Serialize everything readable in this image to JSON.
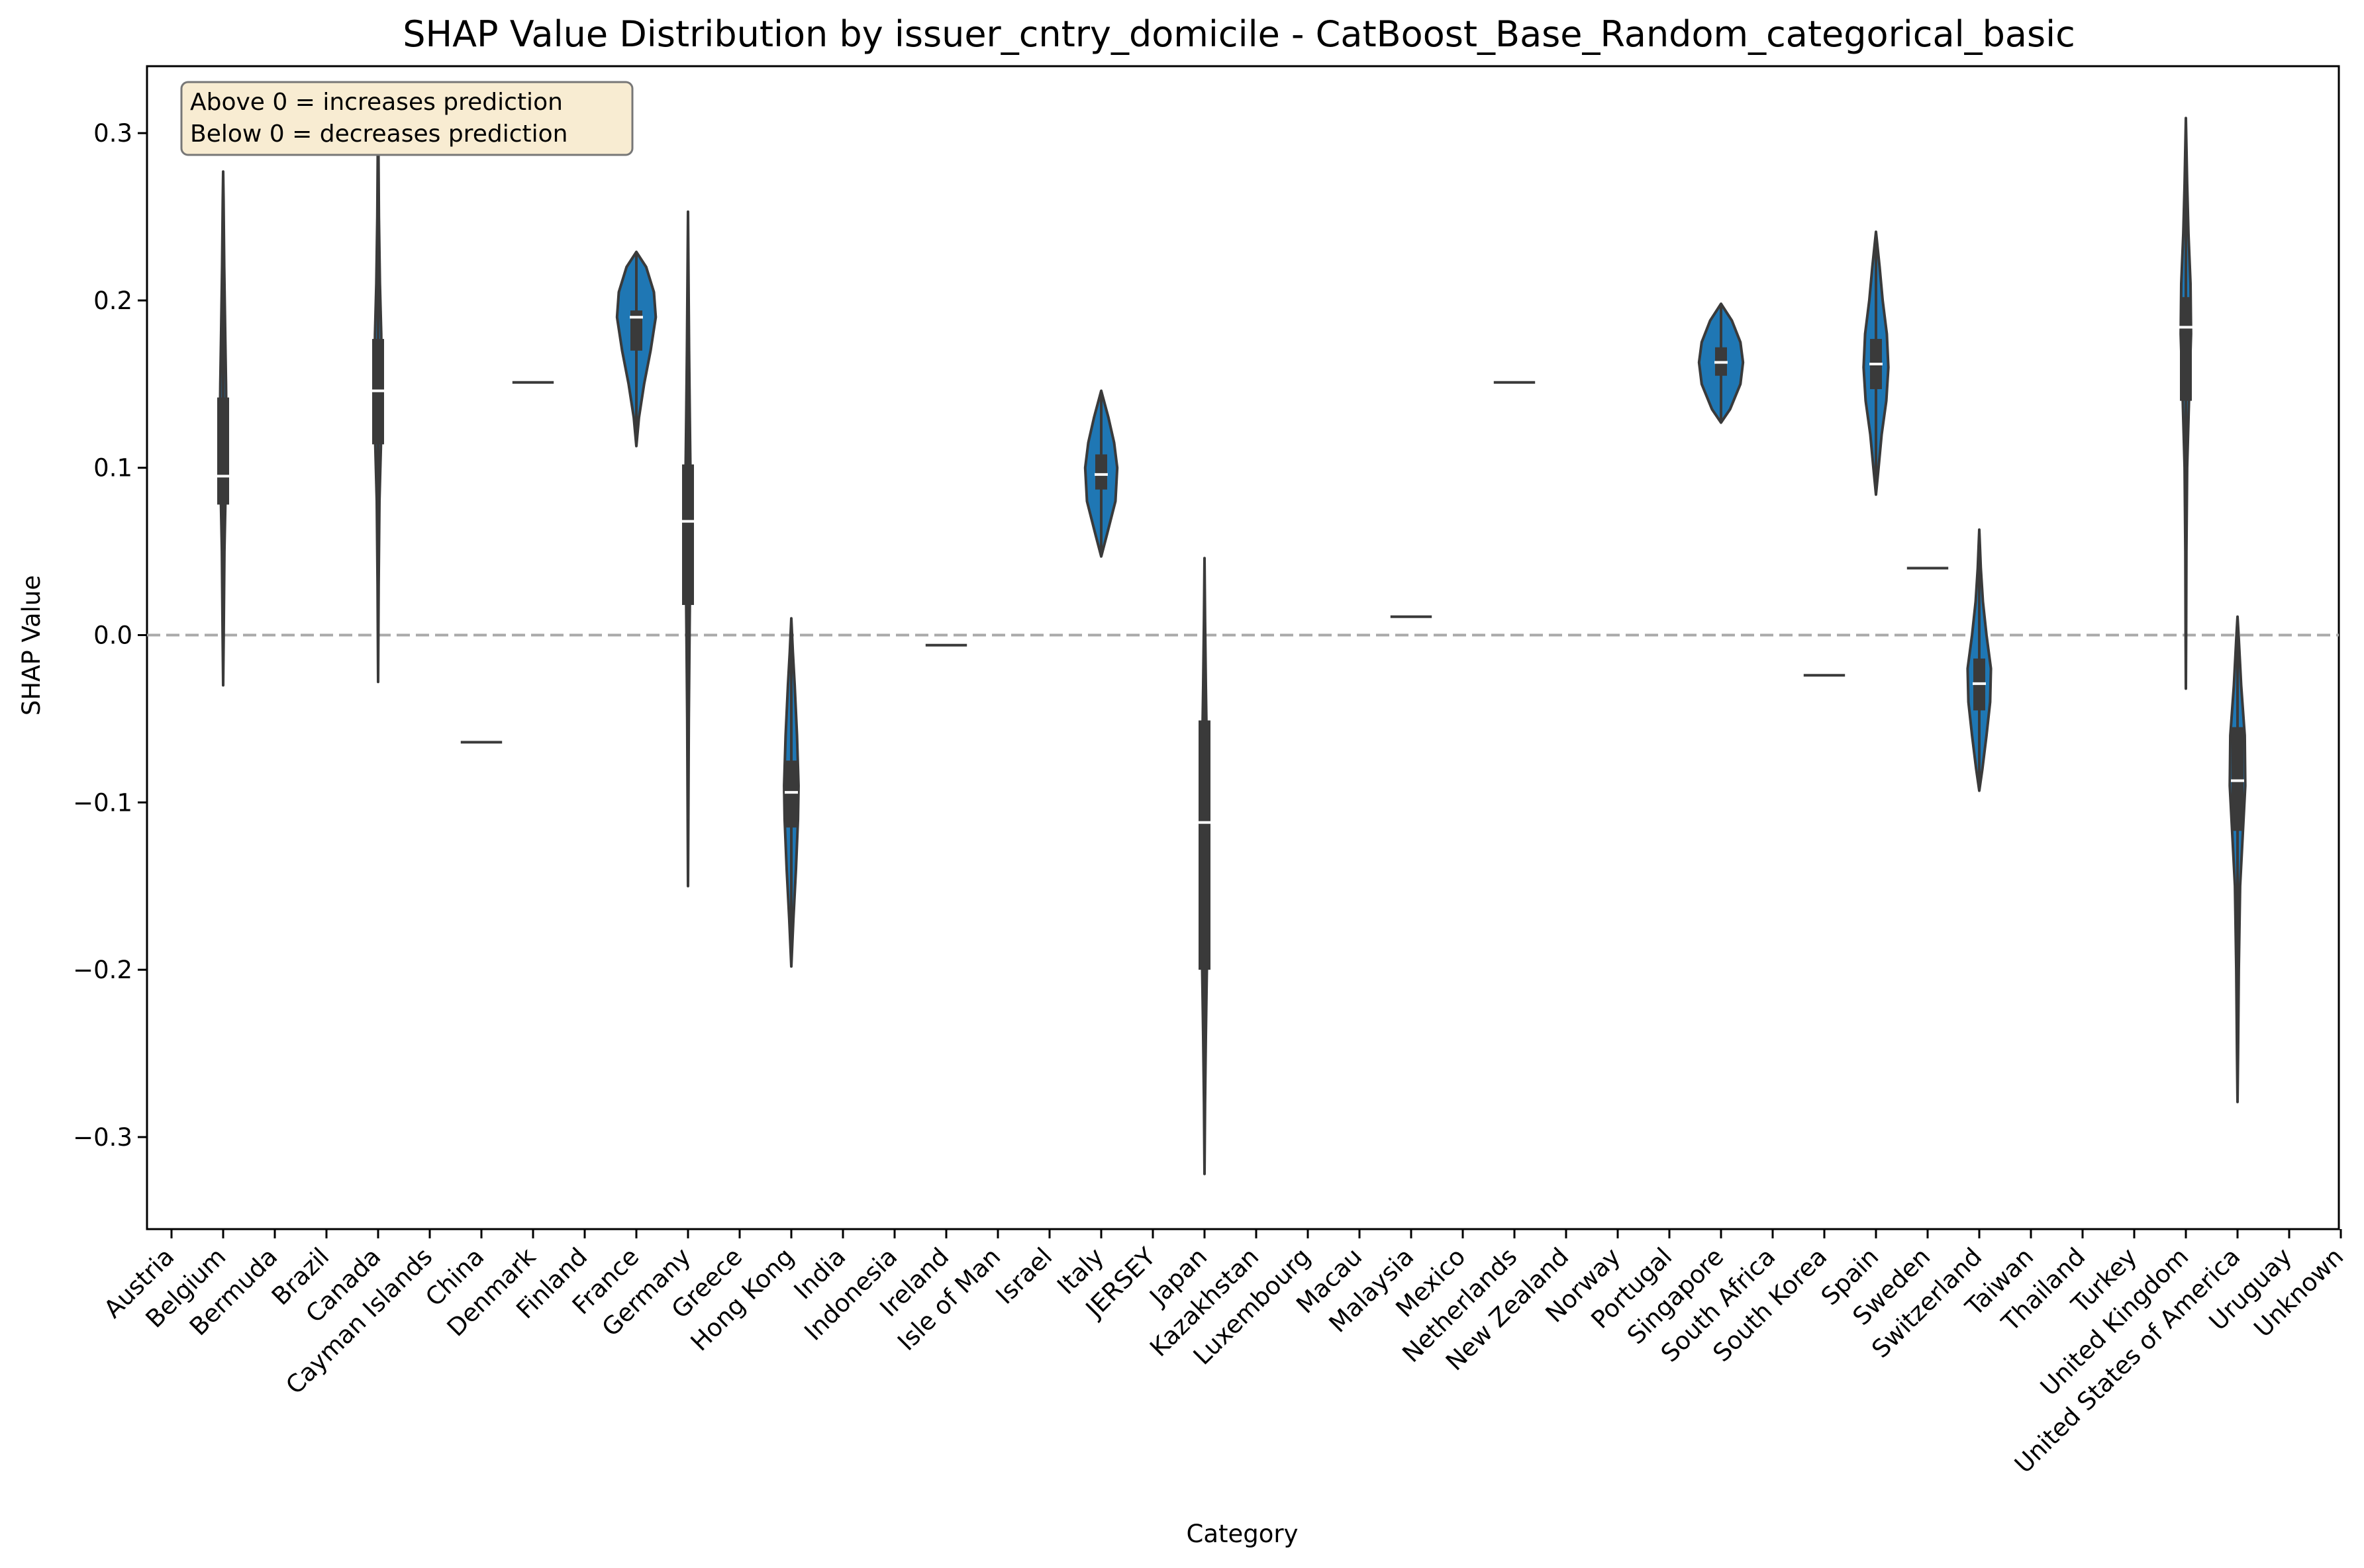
{
  "chart_data": {
    "type": "violin",
    "title": "SHAP Value Distribution by issuer_cntry_domicile - CatBoost_Base_Random_categorical_basic",
    "xlabel": "Category",
    "ylabel": "SHAP Value",
    "ylim": [
      -0.355,
      0.34
    ],
    "yticks": [
      -0.3,
      -0.2,
      -0.1,
      0.0,
      0.1,
      0.2,
      0.3
    ],
    "ytick_labels": [
      "−0.3",
      "−0.2",
      "−0.1",
      "0.0",
      "0.1",
      "0.2",
      "0.3"
    ],
    "reference_line": {
      "y": 0.0,
      "style": "dashed",
      "color": "#aaaaaa"
    },
    "annotation": {
      "lines": [
        "Above 0 = increases prediction",
        "Below 0 = decreases prediction"
      ],
      "placement": "top-left"
    },
    "colors": {
      "violin_fill": "#1f77b4",
      "violin_edge": "#3a3a3a",
      "box": "#3a3a3a",
      "median": "#ffffff"
    },
    "categories": [
      "Austria",
      "Belgium",
      "Bermuda",
      "Brazil",
      "Canada",
      "Cayman Islands",
      "China",
      "Denmark",
      "Finland",
      "France",
      "Germany",
      "Greece",
      "Hong Kong",
      "India",
      "Indonesia",
      "Ireland",
      "Isle of Man",
      "Israel",
      "Italy",
      "JERSEY",
      "Japan",
      "Kazakhstan",
      "Luxembourg",
      "Macau",
      "Malaysia",
      "Mexico",
      "Netherlands",
      "New Zealand",
      "Norway",
      "Portugal",
      "Singapore",
      "South Africa",
      "South Korea",
      "Spain",
      "Sweden",
      "Switzerland",
      "Taiwan",
      "Thailand",
      "Turkey",
      "United Kingdom",
      "United States of America",
      "Uruguay",
      "Unknown"
    ],
    "violins": [
      {
        "category": "Belgium",
        "kind": "violin",
        "min": -0.03,
        "max": 0.277,
        "q1": 0.078,
        "median": 0.095,
        "q3": 0.142,
        "profile": [
          [
            -0.03,
            0.0
          ],
          [
            0.0,
            0.02
          ],
          [
            0.05,
            0.05
          ],
          [
            0.09,
            0.1
          ],
          [
            0.12,
            0.13
          ],
          [
            0.15,
            0.11
          ],
          [
            0.18,
            0.08
          ],
          [
            0.22,
            0.04
          ],
          [
            0.26,
            0.015
          ],
          [
            0.277,
            0.0
          ]
        ]
      },
      {
        "category": "Canada",
        "kind": "violin",
        "min": -0.028,
        "max": 0.305,
        "q1": 0.114,
        "median": 0.146,
        "q3": 0.177,
        "profile": [
          [
            -0.028,
            0.0
          ],
          [
            0.03,
            0.02
          ],
          [
            0.08,
            0.05
          ],
          [
            0.12,
            0.12
          ],
          [
            0.15,
            0.14
          ],
          [
            0.18,
            0.12
          ],
          [
            0.21,
            0.07
          ],
          [
            0.25,
            0.03
          ],
          [
            0.29,
            0.012
          ],
          [
            0.305,
            0.0
          ]
        ]
      },
      {
        "category": "China",
        "kind": "single",
        "value": -0.064
      },
      {
        "category": "Denmark",
        "kind": "single",
        "value": 0.151
      },
      {
        "category": "France",
        "kind": "violin",
        "min": 0.113,
        "max": 0.229,
        "q1": 0.17,
        "median": 0.19,
        "q3": 0.194,
        "profile": [
          [
            0.113,
            0.0
          ],
          [
            0.13,
            0.1
          ],
          [
            0.15,
            0.3
          ],
          [
            0.17,
            0.55
          ],
          [
            0.19,
            0.75
          ],
          [
            0.205,
            0.68
          ],
          [
            0.22,
            0.38
          ],
          [
            0.229,
            0.0
          ]
        ]
      },
      {
        "category": "Germany",
        "kind": "violin",
        "min": -0.15,
        "max": 0.253,
        "q1": 0.018,
        "median": 0.068,
        "q3": 0.102,
        "profile": [
          [
            -0.15,
            0.0
          ],
          [
            -0.1,
            0.015
          ],
          [
            -0.05,
            0.03
          ],
          [
            0.0,
            0.06
          ],
          [
            0.05,
            0.09
          ],
          [
            0.09,
            0.1
          ],
          [
            0.13,
            0.07
          ],
          [
            0.17,
            0.04
          ],
          [
            0.21,
            0.02
          ],
          [
            0.253,
            0.0
          ]
        ]
      },
      {
        "category": "Hong Kong",
        "kind": "violin",
        "min": -0.198,
        "max": 0.01,
        "q1": -0.115,
        "median": -0.094,
        "q3": -0.075,
        "profile": [
          [
            -0.198,
            0.0
          ],
          [
            -0.17,
            0.08
          ],
          [
            -0.14,
            0.18
          ],
          [
            -0.11,
            0.26
          ],
          [
            -0.09,
            0.28
          ],
          [
            -0.06,
            0.22
          ],
          [
            -0.03,
            0.13
          ],
          [
            -0.01,
            0.06
          ],
          [
            0.01,
            0.0
          ]
        ]
      },
      {
        "category": "Ireland",
        "kind": "single",
        "value": -0.006
      },
      {
        "category": "Italy",
        "kind": "violin",
        "min": 0.047,
        "max": 0.146,
        "q1": 0.087,
        "median": 0.096,
        "q3": 0.108,
        "profile": [
          [
            0.047,
            0.0
          ],
          [
            0.06,
            0.22
          ],
          [
            0.08,
            0.55
          ],
          [
            0.1,
            0.62
          ],
          [
            0.115,
            0.5
          ],
          [
            0.13,
            0.28
          ],
          [
            0.146,
            0.0
          ]
        ]
      },
      {
        "category": "Japan",
        "kind": "violin",
        "min": -0.322,
        "max": 0.046,
        "q1": -0.2,
        "median": -0.112,
        "q3": -0.051,
        "profile": [
          [
            -0.322,
            0.0
          ],
          [
            -0.28,
            0.02
          ],
          [
            -0.24,
            0.05
          ],
          [
            -0.2,
            0.09
          ],
          [
            -0.15,
            0.11
          ],
          [
            -0.11,
            0.11
          ],
          [
            -0.07,
            0.09
          ],
          [
            -0.03,
            0.05
          ],
          [
            0.01,
            0.02
          ],
          [
            0.046,
            0.0
          ]
        ]
      },
      {
        "category": "Malaysia",
        "kind": "single",
        "value": 0.011
      },
      {
        "category": "Netherlands",
        "kind": "single",
        "value": 0.151
      },
      {
        "category": "Singapore",
        "kind": "violin",
        "min": 0.127,
        "max": 0.198,
        "q1": 0.155,
        "median": 0.163,
        "q3": 0.172,
        "profile": [
          [
            0.127,
            0.0
          ],
          [
            0.135,
            0.35
          ],
          [
            0.15,
            0.75
          ],
          [
            0.163,
            0.85
          ],
          [
            0.175,
            0.75
          ],
          [
            0.188,
            0.42
          ],
          [
            0.198,
            0.0
          ]
        ]
      },
      {
        "category": "South Korea",
        "kind": "single",
        "value": -0.024
      },
      {
        "category": "Spain",
        "kind": "violin",
        "min": 0.084,
        "max": 0.241,
        "q1": 0.147,
        "median": 0.162,
        "q3": 0.177,
        "profile": [
          [
            0.084,
            0.0
          ],
          [
            0.1,
            0.1
          ],
          [
            0.12,
            0.22
          ],
          [
            0.14,
            0.4
          ],
          [
            0.16,
            0.48
          ],
          [
            0.18,
            0.42
          ],
          [
            0.2,
            0.26
          ],
          [
            0.22,
            0.14
          ],
          [
            0.241,
            0.0
          ]
        ]
      },
      {
        "category": "Sweden",
        "kind": "single",
        "value": 0.04
      },
      {
        "category": "Switzerland",
        "kind": "violin",
        "min": -0.093,
        "max": 0.063,
        "q1": -0.045,
        "median": -0.029,
        "q3": -0.014,
        "profile": [
          [
            -0.093,
            0.0
          ],
          [
            -0.08,
            0.12
          ],
          [
            -0.06,
            0.28
          ],
          [
            -0.04,
            0.42
          ],
          [
            -0.02,
            0.45
          ],
          [
            0.0,
            0.28
          ],
          [
            0.02,
            0.14
          ],
          [
            0.04,
            0.06
          ],
          [
            0.063,
            0.0
          ]
        ]
      },
      {
        "category": "United Kingdom",
        "kind": "violin",
        "min": -0.032,
        "max": 0.309,
        "q1": 0.14,
        "median": 0.184,
        "q3": 0.202,
        "profile": [
          [
            -0.032,
            0.0
          ],
          [
            0.0,
            0.01
          ],
          [
            0.05,
            0.02
          ],
          [
            0.1,
            0.05
          ],
          [
            0.14,
            0.12
          ],
          [
            0.18,
            0.2
          ],
          [
            0.21,
            0.18
          ],
          [
            0.24,
            0.1
          ],
          [
            0.27,
            0.05
          ],
          [
            0.309,
            0.0
          ]
        ]
      },
      {
        "category": "United States of America",
        "kind": "violin",
        "min": -0.279,
        "max": 0.011,
        "q1": -0.117,
        "median": -0.087,
        "q3": -0.055,
        "profile": [
          [
            -0.279,
            0.0
          ],
          [
            -0.25,
            0.02
          ],
          [
            -0.2,
            0.05
          ],
          [
            -0.15,
            0.1
          ],
          [
            -0.12,
            0.2
          ],
          [
            -0.09,
            0.3
          ],
          [
            -0.06,
            0.28
          ],
          [
            -0.03,
            0.14
          ],
          [
            0.0,
            0.04
          ],
          [
            0.011,
            0.0
          ]
        ]
      }
    ]
  }
}
